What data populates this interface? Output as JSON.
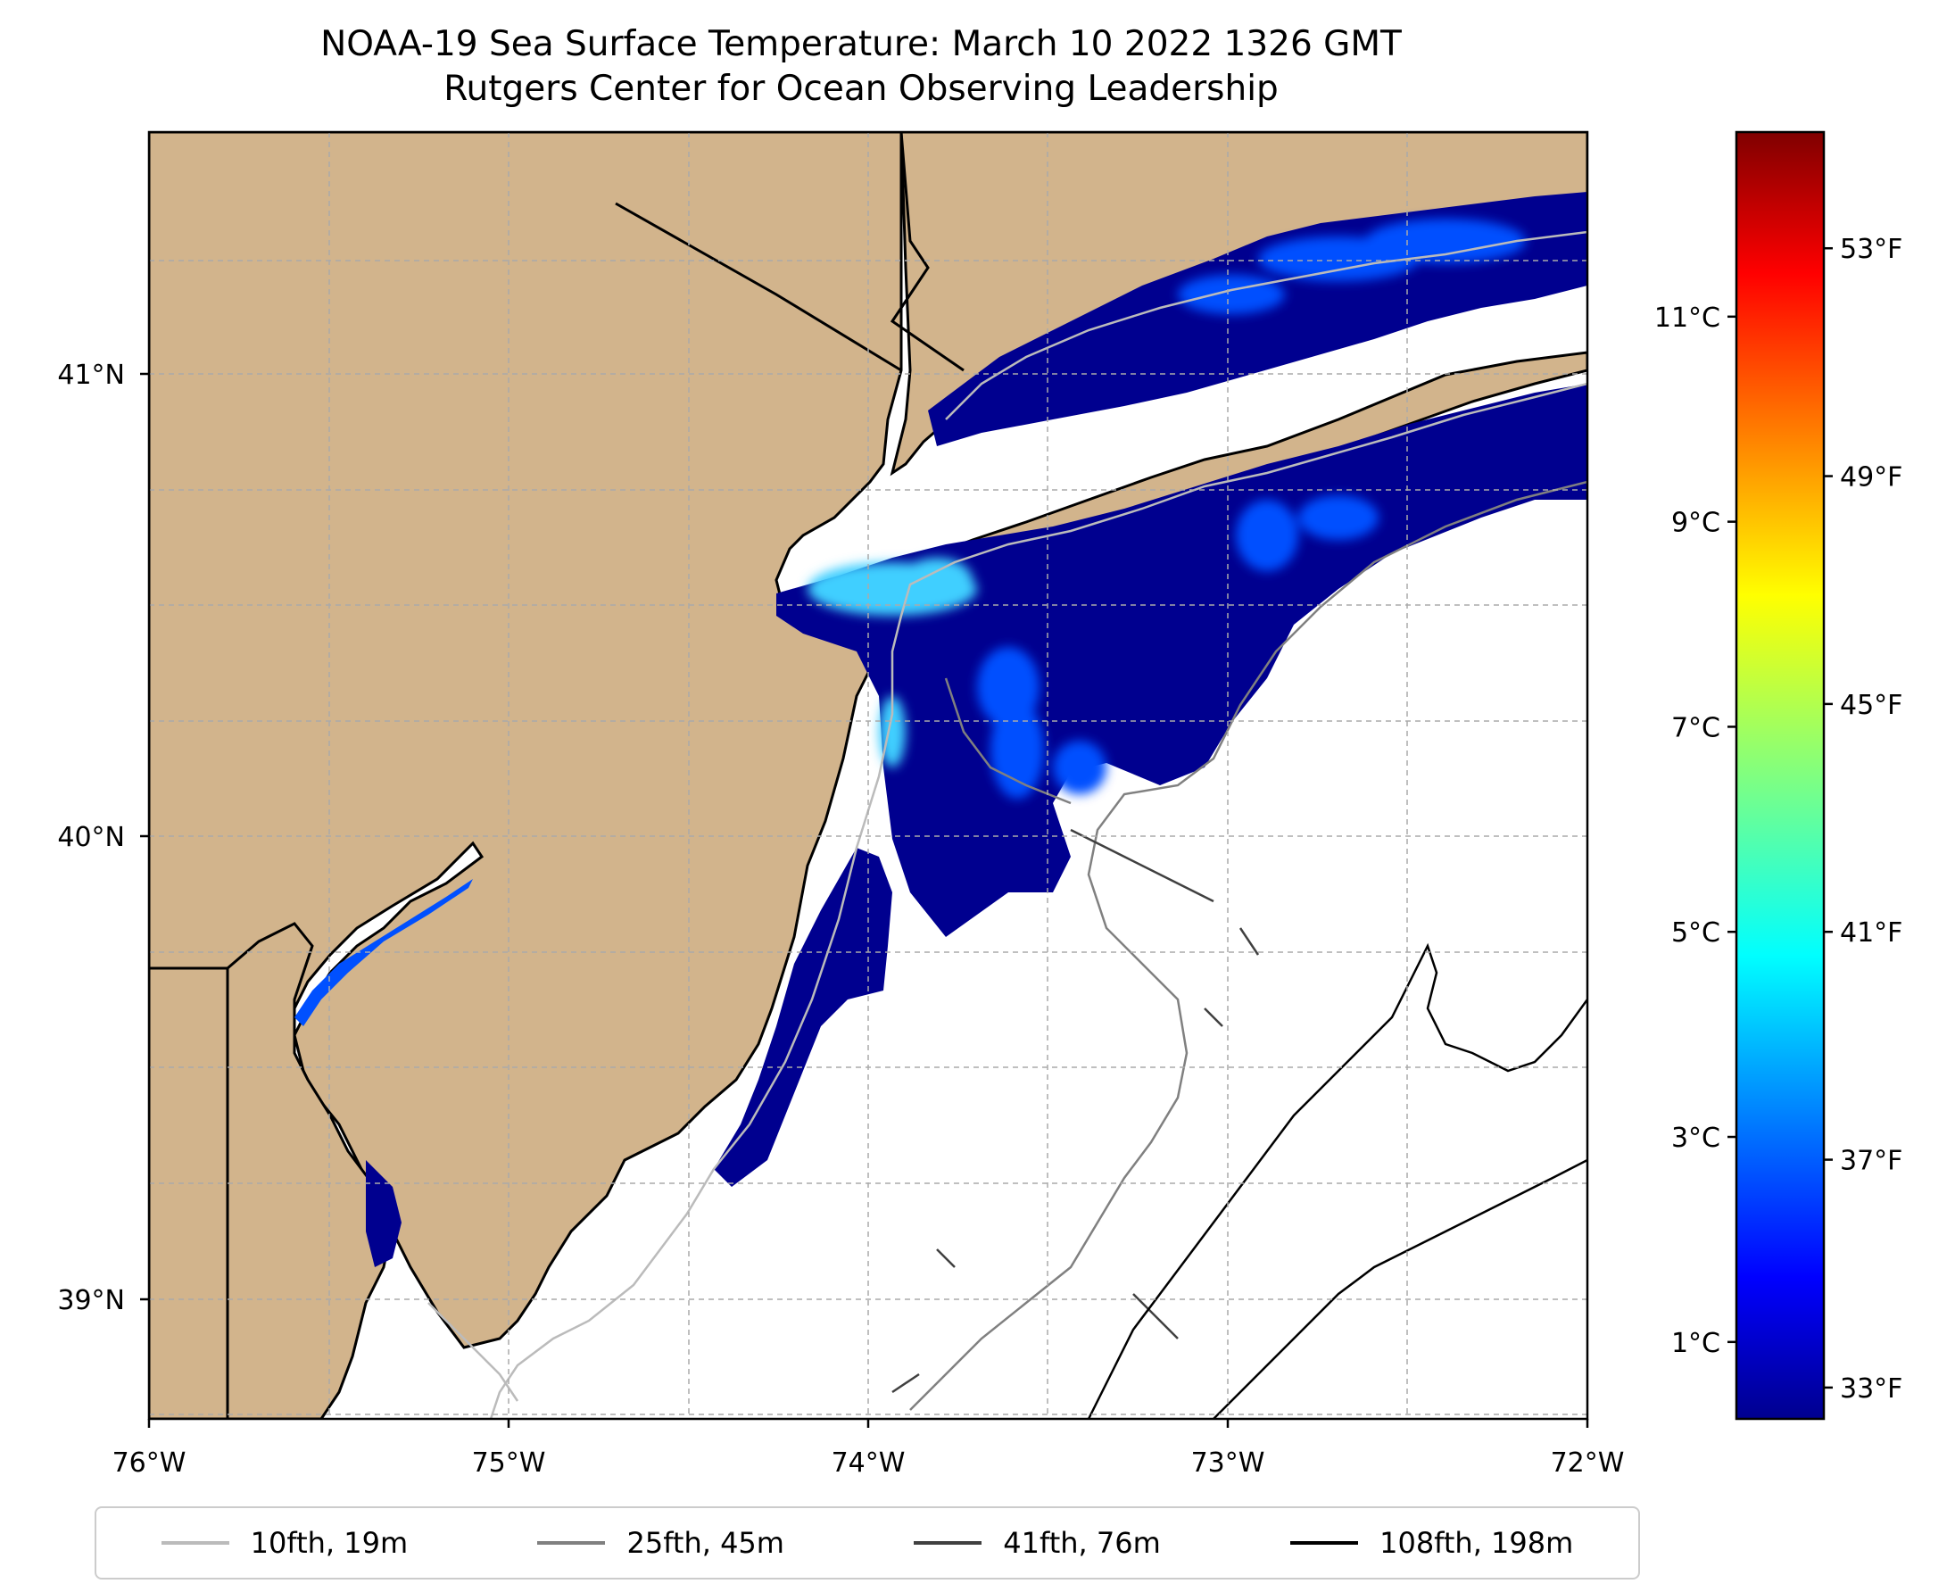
{
  "title": {
    "line1": "NOAA-19 Sea Surface Temperature: March 10 2022 1326 GMT",
    "line2": "Rutgers Center for Ocean Observing Leadership"
  },
  "axes": {
    "x_ticks": [
      {
        "value": -76,
        "label": "76°W"
      },
      {
        "value": -75,
        "label": "75°W"
      },
      {
        "value": -74,
        "label": "74°W"
      },
      {
        "value": -73,
        "label": "73°W"
      },
      {
        "value": -72,
        "label": "72°W"
      }
    ],
    "y_ticks": [
      {
        "value": 41,
        "label": "41°N"
      },
      {
        "value": 40,
        "label": "40°N"
      },
      {
        "value": 39,
        "label": "39°N"
      }
    ],
    "lon_range": [
      -76,
      -72
    ],
    "lat_range": [
      38.75,
      41.55
    ]
  },
  "colorbar": {
    "colormap": "jet",
    "min_c": 0.25,
    "max_c": 12.8,
    "celsius_ticks": [
      {
        "value": 1,
        "label": "1°C"
      },
      {
        "value": 3,
        "label": "3°C"
      },
      {
        "value": 5,
        "label": "5°C"
      },
      {
        "value": 7,
        "label": "7°C"
      },
      {
        "value": 9,
        "label": "9°C"
      },
      {
        "value": 11,
        "label": "11°C"
      }
    ],
    "fahrenheit_ticks": [
      {
        "value": 33,
        "label": "33°F"
      },
      {
        "value": 37,
        "label": "37°F"
      },
      {
        "value": 41,
        "label": "41°F"
      },
      {
        "value": 45,
        "label": "45°F"
      },
      {
        "value": 49,
        "label": "49°F"
      },
      {
        "value": 53,
        "label": "53°F"
      }
    ]
  },
  "legend": {
    "items": [
      {
        "label": "10fth, 19m",
        "color": "#bbbbbb"
      },
      {
        "label": "25fth, 45m",
        "color": "#808080"
      },
      {
        "label": "41fth, 76m",
        "color": "#404040"
      },
      {
        "label": "108fth, 198m",
        "color": "#000000"
      }
    ]
  },
  "colors": {
    "land": "#d2b48c",
    "sst_cold": "#00008f",
    "sst_mid": "#0050ff",
    "sst_warm": "#3fcfff"
  }
}
